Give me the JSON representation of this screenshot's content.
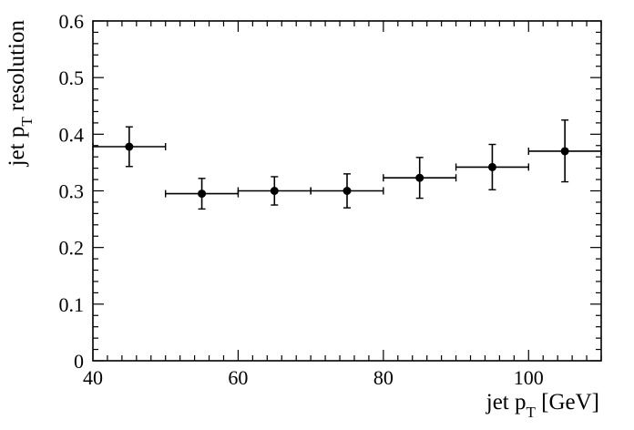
{
  "chart_data": {
    "type": "scatter",
    "title": "",
    "xlabel": "jet p_T [GeV]",
    "ylabel": "jet p_T resolution",
    "xlabel_parts": {
      "main": "jet p",
      "sub": "T",
      "rest": " [GeV]"
    },
    "ylabel_parts": {
      "main": "jet p",
      "sub": "T",
      "rest": " resolution"
    },
    "xlim": [
      40,
      110
    ],
    "ylim": [
      0,
      0.6
    ],
    "grid": false,
    "x_ticks": [
      40,
      60,
      80,
      100
    ],
    "x_tick_labels": [
      "40",
      "60",
      "80",
      "100"
    ],
    "y_ticks": [
      0,
      0.1,
      0.2,
      0.3,
      0.4,
      0.5,
      0.6
    ],
    "y_tick_labels": [
      "0",
      "0.1",
      "0.2",
      "0.3",
      "0.4",
      "0.5",
      "0.6"
    ],
    "series": [
      {
        "marker_color": "#000000",
        "points": [
          {
            "x": 45,
            "y": 0.378,
            "x_lo": 40,
            "x_hi": 50,
            "y_lo": 0.343,
            "y_hi": 0.413
          },
          {
            "x": 55,
            "y": 0.295,
            "x_lo": 50,
            "x_hi": 60,
            "y_lo": 0.268,
            "y_hi": 0.322
          },
          {
            "x": 65,
            "y": 0.3,
            "x_lo": 60,
            "x_hi": 70,
            "y_lo": 0.275,
            "y_hi": 0.325
          },
          {
            "x": 75,
            "y": 0.3,
            "x_lo": 70,
            "x_hi": 80,
            "y_lo": 0.27,
            "y_hi": 0.33
          },
          {
            "x": 85,
            "y": 0.323,
            "x_lo": 80,
            "x_hi": 90,
            "y_lo": 0.287,
            "y_hi": 0.359
          },
          {
            "x": 95,
            "y": 0.342,
            "x_lo": 90,
            "x_hi": 100,
            "y_lo": 0.302,
            "y_hi": 0.382
          },
          {
            "x": 105,
            "y": 0.37,
            "x_lo": 100,
            "x_hi": 110,
            "y_lo": 0.316,
            "y_hi": 0.425
          }
        ]
      }
    ]
  }
}
